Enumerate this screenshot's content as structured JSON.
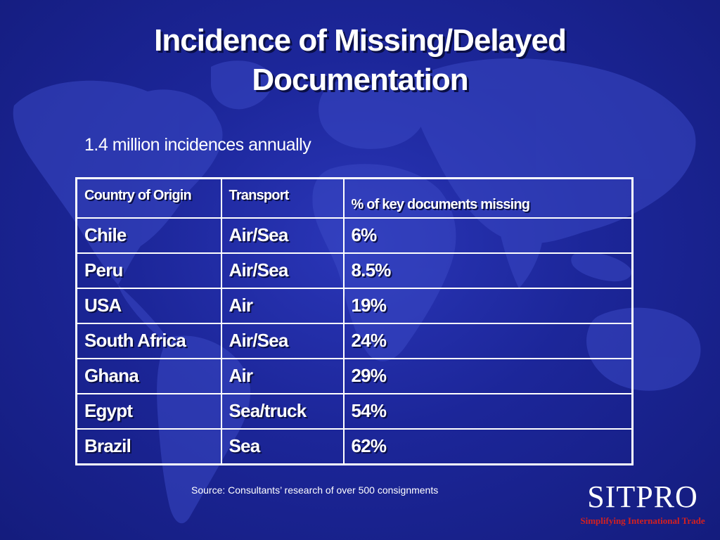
{
  "slide": {
    "title_line1": "Incidence of Missing/Delayed",
    "title_line2": "Documentation",
    "subtitle": "1.4 million incidences annually"
  },
  "table": {
    "headers": [
      "Country of Origin",
      "Transport",
      "% of key documents missing"
    ],
    "rows": [
      {
        "country": "Chile",
        "transport": "Air/Sea",
        "percent": "6%"
      },
      {
        "country": "Peru",
        "transport": "Air/Sea",
        "percent": "8.5%"
      },
      {
        "country": "USA",
        "transport": "Air",
        "percent": "19%"
      },
      {
        "country": "South Africa",
        "transport": "Air/Sea",
        "percent": "24%"
      },
      {
        "country": "Ghana",
        "transport": "Air",
        "percent": "29%"
      },
      {
        "country": "Egypt",
        "transport": "Sea/truck",
        "percent": "54%"
      },
      {
        "country": "Brazil",
        "transport": "Sea",
        "percent": "62%"
      }
    ]
  },
  "footer": {
    "source": "Source: Consultants’ research of over  500 consignments"
  },
  "brand": {
    "name": "SITPRO",
    "tagline": "Simplifying International Trade"
  },
  "colors": {
    "background": "#1c2699",
    "continents": "#3a48c4",
    "text": "#ffffff",
    "tagline": "#d42020"
  }
}
